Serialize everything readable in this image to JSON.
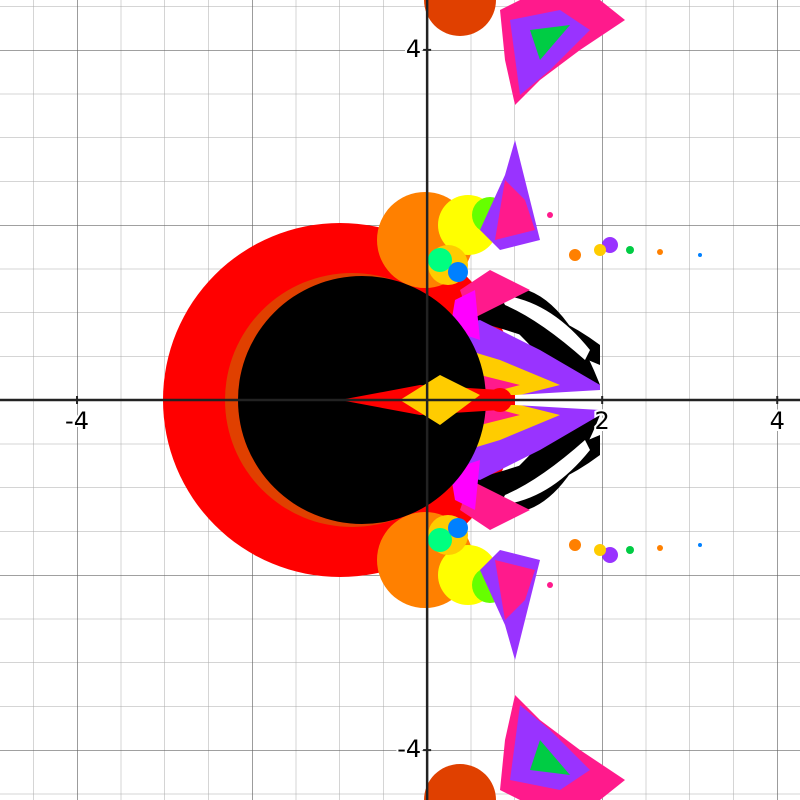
{
  "chart_data": {
    "type": "fractal",
    "xlim": [
      -4.88,
      4.26
    ],
    "ylim": [
      -4.57,
      4.57
    ],
    "xticks": [
      -4,
      2,
      4
    ],
    "yticks": [
      4,
      -4
    ],
    "grid": true
  }
}
